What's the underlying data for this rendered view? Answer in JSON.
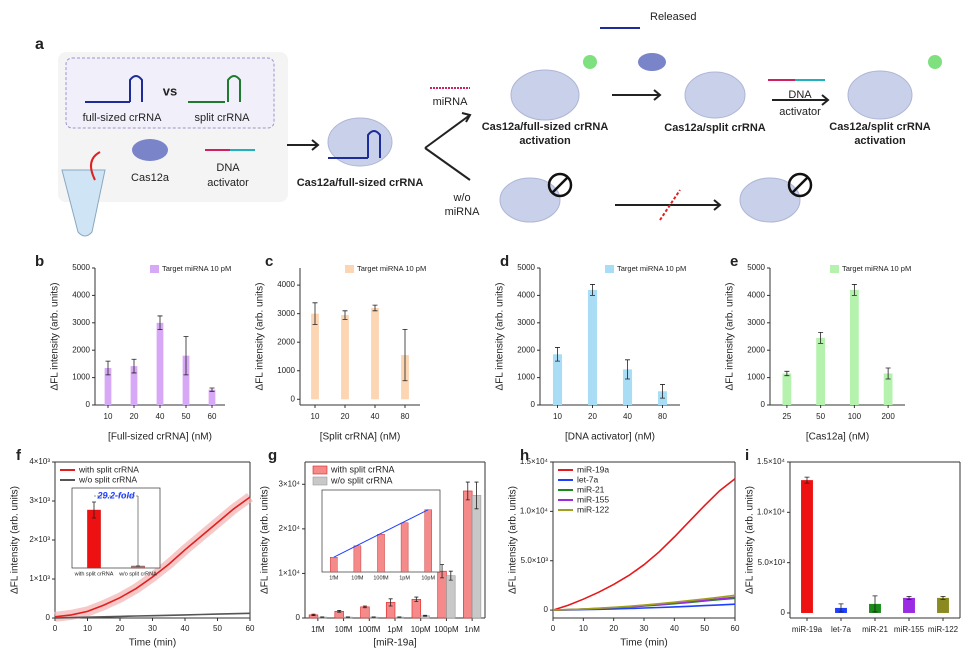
{
  "diagram": {
    "label": "a",
    "full_sized": "full-sized crRNA",
    "vs": "vs",
    "split": "split crRNA",
    "cas12a": "Cas12a",
    "dna_activator": [
      "DNA",
      "activator"
    ],
    "complex": "Cas12a/full-sized crRNA",
    "mirna": "miRNA",
    "wo_mirna": [
      "w/o",
      "miRNA"
    ],
    "activation1": [
      "Cas12a/full-sized crRNA",
      "activation"
    ],
    "released": "Released",
    "split_complex": "Cas12a/split crRNA",
    "dna_activator2": [
      "DNA",
      "activator"
    ],
    "activation2": [
      "Cas12a/split crRNA",
      "activation"
    ]
  },
  "chart_data": [
    {
      "panel": "b",
      "type": "bar",
      "categories": [
        "10",
        "20",
        "40",
        "50",
        "60"
      ],
      "values": [
        1350,
        1420,
        3000,
        1800,
        560
      ],
      "errors": [
        250,
        250,
        250,
        700,
        60
      ],
      "color": "#d7a8f5",
      "legend": "Target miRNA 10 pM",
      "xlabel": "[Full-sized crRNA] (nM)",
      "ylabel": "ΔFL intensity (arb. units)",
      "ylim": [
        0,
        5000
      ],
      "yticks": [
        0,
        1000,
        2000,
        3000,
        4000,
        5000
      ]
    },
    {
      "panel": "c",
      "type": "bar",
      "categories": [
        "10",
        "20",
        "40",
        "80"
      ],
      "values": [
        3000,
        2950,
        3200,
        1550
      ],
      "errors": [
        380,
        150,
        100,
        900
      ],
      "color": "#fcd5b3",
      "legend": "Target miRNA 10 pM",
      "xlabel": "[Split crRNA] (nM)",
      "ylabel": "ΔFL intensity (arb. units)",
      "ylim": [
        -200,
        4600
      ],
      "yticks": [
        0,
        1000,
        2000,
        3000,
        4000
      ]
    },
    {
      "panel": "d",
      "type": "bar",
      "categories": [
        "10",
        "20",
        "40",
        "80"
      ],
      "values": [
        1850,
        4200,
        1300,
        500
      ],
      "errors": [
        250,
        200,
        350,
        250
      ],
      "color": "#a9dcf5",
      "legend": "Target miRNA 10 pM",
      "xlabel": "[DNA activator] (nM)",
      "ylabel": "ΔFL intensity (arb. units)",
      "ylim": [
        0,
        5000
      ],
      "yticks": [
        0,
        1000,
        2000,
        3000,
        4000,
        5000
      ]
    },
    {
      "panel": "e",
      "type": "bar",
      "categories": [
        "25",
        "50",
        "100",
        "200"
      ],
      "values": [
        1150,
        2450,
        4200,
        1150
      ],
      "errors": [
        80,
        200,
        200,
        200
      ],
      "color": "#b5f2ad",
      "legend": "Target miRNA 10 pM",
      "xlabel": "[Cas12a] (nM)",
      "ylabel": "ΔFL intensity (arb. units)",
      "ylim": [
        0,
        5000
      ],
      "yticks": [
        0,
        1000,
        2000,
        3000,
        4000,
        5000
      ]
    },
    {
      "panel": "f",
      "type": "line",
      "x": [
        0,
        5,
        10,
        15,
        20,
        25,
        30,
        35,
        40,
        45,
        50,
        55,
        60
      ],
      "xlim": [
        0,
        60
      ],
      "xticks": [
        0,
        10,
        20,
        30,
        40,
        50,
        60
      ],
      "ylim": [
        0,
        4000
      ],
      "yticks": [
        0,
        {
          "value": 1000,
          "label": "1×10³"
        },
        {
          "value": 2000,
          "label": "2×10³"
        },
        {
          "value": 3000,
          "label": "3×10³"
        },
        {
          "value": 4000,
          "label": "4×10³"
        }
      ],
      "xlabel": "Time (min)",
      "ylabel": "ΔFL intensity (arb. units)",
      "series": [
        {
          "name": "with split crRNA",
          "color": "#e02020",
          "values": [
            30,
            80,
            170,
            330,
            520,
            760,
            1050,
            1380,
            1750,
            2100,
            2450,
            2800,
            3100
          ]
        },
        {
          "name": "w/o split crRNA",
          "color": "#555555",
          "values": [
            0,
            10,
            20,
            30,
            40,
            50,
            60,
            70,
            80,
            90,
            100,
            110,
            120
          ]
        }
      ],
      "inset": {
        "categories": [
          "with split crRNA",
          "w/o split crRNA"
        ],
        "values": [
          2900,
          100
        ],
        "errors": [
          400,
          0
        ],
        "ylim": [
          0,
          4000
        ],
        "annotation": "29.2-fold"
      }
    },
    {
      "panel": "g",
      "type": "bar",
      "categories": [
        "1fM",
        "10fM",
        "100fM",
        "1pM",
        "10pM",
        "100pM",
        "1nM"
      ],
      "ylim": [
        0,
        35000
      ],
      "yticks": [
        0,
        {
          "value": 10000,
          "label": "1×10⁴"
        },
        {
          "value": 20000,
          "label": "2×10⁴"
        },
        {
          "value": 30000,
          "label": "3×10⁴"
        }
      ],
      "xlabel": "[miR-19a]",
      "ylabel": "ΔFL intensity (arb. units)",
      "series": [
        {
          "name": "with split crRNA",
          "color": "#f48a8a",
          "values": [
            700,
            1500,
            2500,
            3500,
            4200,
            10500,
            28500
          ],
          "errors": [
            150,
            200,
            200,
            800,
            500,
            1500,
            2000
          ]
        },
        {
          "name": "w/o split crRNA",
          "color": "#c8c8c8",
          "values": [
            200,
            200,
            200,
            200,
            500,
            9500,
            27500
          ],
          "errors": [
            50,
            50,
            50,
            50,
            100,
            1000,
            3000
          ]
        }
      ],
      "inset": {
        "categories": [
          "1fM",
          "10fM",
          "100fM",
          "1pM",
          "10pM"
        ],
        "values": [
          900,
          1600,
          2300,
          3000,
          3800
        ],
        "ylim": [
          0,
          5000
        ]
      }
    },
    {
      "panel": "h",
      "type": "line",
      "x": [
        0,
        5,
        10,
        15,
        20,
        25,
        30,
        35,
        40,
        45,
        50,
        55,
        60
      ],
      "xlim": [
        0,
        60
      ],
      "xticks": [
        0,
        10,
        20,
        30,
        40,
        50,
        60
      ],
      "ylim": [
        -800,
        15000
      ],
      "yticks": [
        0,
        {
          "value": 5000,
          "label": "5.0×10³"
        },
        {
          "value": 10000,
          "label": "1.0×10⁴"
        },
        {
          "value": 15000,
          "label": "1.5×10⁴"
        }
      ],
      "xlabel": "Time (min)",
      "ylabel": "ΔFL intensity (arb. units)",
      "series": [
        {
          "name": "miR-19a",
          "color": "#e41a1c",
          "values": [
            0,
            500,
            1100,
            1800,
            2600,
            3500,
            4600,
            5900,
            7400,
            9000,
            10600,
            12100,
            13300
          ]
        },
        {
          "name": "let-7a",
          "color": "#1f3fff",
          "values": [
            0,
            20,
            50,
            80,
            120,
            160,
            210,
            260,
            320,
            390,
            460,
            530,
            600
          ]
        },
        {
          "name": "miR-21",
          "color": "#1a8a1a",
          "values": [
            0,
            40,
            90,
            150,
            230,
            320,
            420,
            530,
            650,
            780,
            920,
            1060,
            1200
          ]
        },
        {
          "name": "miR-155",
          "color": "#9a2be2",
          "values": [
            0,
            45,
            100,
            170,
            250,
            340,
            450,
            570,
            700,
            840,
            990,
            1140,
            1300
          ]
        },
        {
          "name": "miR-122",
          "color": "#a0a020",
          "values": [
            0,
            50,
            115,
            190,
            280,
            390,
            510,
            650,
            800,
            960,
            1130,
            1310,
            1500
          ]
        }
      ]
    },
    {
      "panel": "i",
      "type": "bar",
      "categories": [
        "miR-19a",
        "let-7a",
        "miR-21",
        "miR-155",
        "miR-122"
      ],
      "values": [
        13200,
        500,
        900,
        1500,
        1500
      ],
      "errors": [
        300,
        400,
        800,
        150,
        150
      ],
      "colors": [
        "#ee1111",
        "#1f3fff",
        "#1a8a1a",
        "#9a2be2",
        "#8a8a20"
      ],
      "ylim": [
        -500,
        15000
      ],
      "yticks": [
        0,
        {
          "value": 5000,
          "label": "5.0×10³"
        },
        {
          "value": 10000,
          "label": "1.0×10⁴"
        },
        {
          "value": 15000,
          "label": "1.5×10⁴"
        }
      ],
      "ylabel": "ΔFL intensity (arb. units)"
    }
  ]
}
